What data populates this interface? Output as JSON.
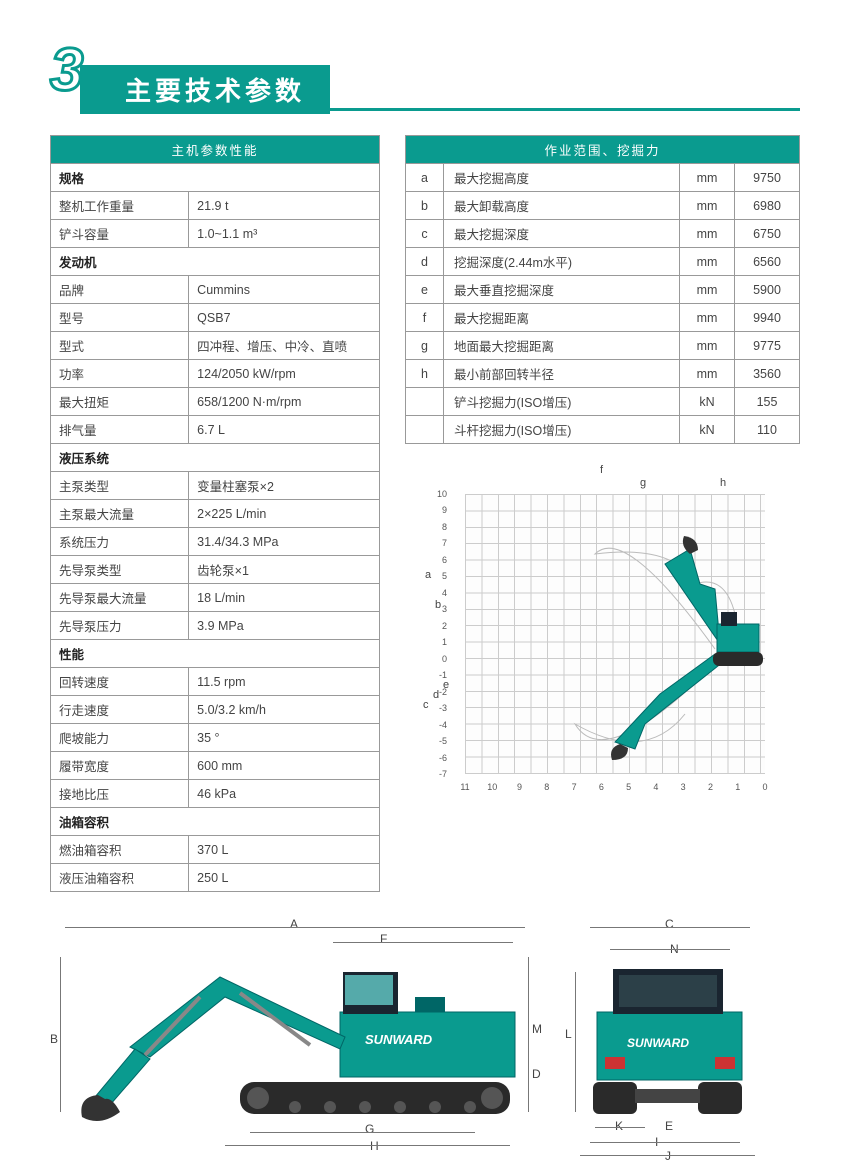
{
  "header": {
    "number": "3",
    "title": "主要技术参数"
  },
  "colors": {
    "brand": "#0a9b8f",
    "border": "#999999",
    "text": "#444444",
    "bg": "#ffffff"
  },
  "left_table": {
    "header": "主机参数性能",
    "sections": [
      {
        "label": "规格",
        "rows": [
          {
            "k": "整机工作重量",
            "v": "21.9 t"
          },
          {
            "k": "铲斗容量",
            "v": "1.0~1.1 m³"
          }
        ]
      },
      {
        "label": "发动机",
        "rows": [
          {
            "k": "品牌",
            "v": "Cummins"
          },
          {
            "k": "型号",
            "v": "QSB7"
          },
          {
            "k": "型式",
            "v": "四冲程、增压、中冷、直喷"
          },
          {
            "k": "功率",
            "v": "124/2050 kW/rpm"
          },
          {
            "k": "最大扭矩",
            "v": "658/1200 N·m/rpm"
          },
          {
            "k": "排气量",
            "v": "6.7 L"
          }
        ]
      },
      {
        "label": "液压系统",
        "rows": [
          {
            "k": "主泵类型",
            "v": "变量柱塞泵×2"
          },
          {
            "k": "主泵最大流量",
            "v": "2×225 L/min"
          },
          {
            "k": "系统压力",
            "v": "31.4/34.3 MPa"
          },
          {
            "k": "先导泵类型",
            "v": "齿轮泵×1"
          },
          {
            "k": "先导泵最大流量",
            "v": "18 L/min"
          },
          {
            "k": "先导泵压力",
            "v": "3.9 MPa"
          }
        ]
      },
      {
        "label": "性能",
        "rows": [
          {
            "k": "回转速度",
            "v": "11.5 rpm"
          },
          {
            "k": "行走速度",
            "v": "5.0/3.2 km/h"
          },
          {
            "k": "爬坡能力",
            "v": "35 °"
          },
          {
            "k": "履带宽度",
            "v": "600 mm"
          },
          {
            "k": "接地比压",
            "v": "46 kPa"
          }
        ]
      },
      {
        "label": "油箱容积",
        "rows": [
          {
            "k": "燃油箱容积",
            "v": "370 L"
          },
          {
            "k": "液压油箱容积",
            "v": "250 L"
          }
        ]
      }
    ]
  },
  "right_table": {
    "header": "作业范围、挖掘力",
    "rows": [
      {
        "letter": "a",
        "desc": "最大挖掘高度",
        "unit": "mm",
        "val": "9750"
      },
      {
        "letter": "b",
        "desc": "最大卸载高度",
        "unit": "mm",
        "val": "6980"
      },
      {
        "letter": "c",
        "desc": "最大挖掘深度",
        "unit": "mm",
        "val": "6750"
      },
      {
        "letter": "d",
        "desc": "挖掘深度(2.44m水平)",
        "unit": "mm",
        "val": "6560"
      },
      {
        "letter": "e",
        "desc": "最大垂直挖掘深度",
        "unit": "mm",
        "val": "5900"
      },
      {
        "letter": "f",
        "desc": "最大挖掘距离",
        "unit": "mm",
        "val": "9940"
      },
      {
        "letter": "g",
        "desc": "地面最大挖掘距离",
        "unit": "mm",
        "val": "9775"
      },
      {
        "letter": "h",
        "desc": "最小前部回转半径",
        "unit": "mm",
        "val": "3560"
      },
      {
        "letter": "",
        "desc": "铲斗挖掘力(ISO增压)",
        "unit": "kN",
        "val": "155"
      },
      {
        "letter": "",
        "desc": "斗杆挖掘力(ISO增压)",
        "unit": "kN",
        "val": "110"
      }
    ]
  },
  "range_diagram": {
    "y_ticks": [
      "10",
      "9",
      "8",
      "7",
      "6",
      "5",
      "4",
      "3",
      "2",
      "1",
      "0",
      "-1",
      "-2",
      "-3",
      "-4",
      "-5",
      "-6",
      "-7"
    ],
    "x_ticks": [
      "11",
      "10",
      "9",
      "8",
      "7",
      "6",
      "5",
      "4",
      "3",
      "2",
      "1",
      "0"
    ],
    "dim_labels": [
      "a",
      "b",
      "c",
      "d",
      "e",
      "f",
      "g",
      "h"
    ]
  },
  "bottom_diagram": {
    "side_labels": [
      "A",
      "B",
      "D",
      "F",
      "G",
      "H",
      "M"
    ],
    "front_labels": [
      "C",
      "I",
      "J",
      "K",
      "L",
      "N",
      "E"
    ],
    "brand_text": "SUNWARD"
  }
}
